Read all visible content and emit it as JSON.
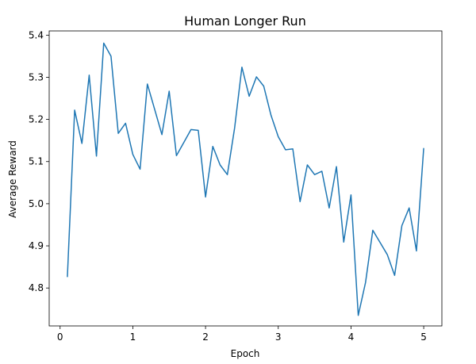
{
  "chart_data": {
    "type": "line",
    "title": "Human Longer Run",
    "xlabel": "Epoch",
    "ylabel": "Average Reward",
    "xlim": [
      -0.15,
      5.25
    ],
    "ylim": [
      4.71,
      5.41
    ],
    "grid": false,
    "legend": "none",
    "xticks": [
      0,
      1,
      2,
      3,
      4,
      5
    ],
    "yticks": [
      4.8,
      4.9,
      5.0,
      5.1,
      5.2,
      5.3,
      5.4
    ],
    "xtick_labels": [
      "0",
      "1",
      "2",
      "3",
      "4",
      "5"
    ],
    "ytick_labels": [
      "4.8",
      "4.9",
      "5.0",
      "5.1",
      "5.2",
      "5.3",
      "5.4"
    ],
    "series": [
      {
        "color": "#1f77b4",
        "x": [
          0.1,
          0.2,
          0.3,
          0.4,
          0.5,
          0.6,
          0.7,
          0.8,
          0.9,
          1.0,
          1.1,
          1.2,
          1.3,
          1.4,
          1.5,
          1.6,
          1.7,
          1.8,
          1.9,
          2.0,
          2.1,
          2.2,
          2.3,
          2.4,
          2.5,
          2.6,
          2.7,
          2.8,
          2.9,
          3.0,
          3.1,
          3.2,
          3.3,
          3.4,
          3.5,
          3.6,
          3.7,
          3.8,
          3.9,
          4.0,
          4.1,
          4.2,
          4.3,
          4.4,
          4.5,
          4.6,
          4.7,
          4.8,
          4.9,
          5.0
        ],
        "y": [
          4.826,
          5.222,
          5.143,
          5.305,
          5.113,
          5.381,
          5.35,
          5.167,
          5.191,
          5.117,
          5.082,
          5.284,
          5.224,
          5.164,
          5.267,
          5.114,
          5.145,
          5.176,
          5.174,
          5.016,
          5.136,
          5.092,
          5.069,
          5.18,
          5.324,
          5.255,
          5.301,
          5.279,
          5.21,
          5.159,
          5.128,
          5.13,
          5.005,
          5.092,
          5.069,
          5.077,
          4.99,
          5.088,
          4.909,
          5.021,
          4.735,
          4.813,
          4.937,
          4.908,
          4.879,
          4.83,
          4.948,
          4.99,
          4.888,
          5.132
        ]
      }
    ]
  }
}
